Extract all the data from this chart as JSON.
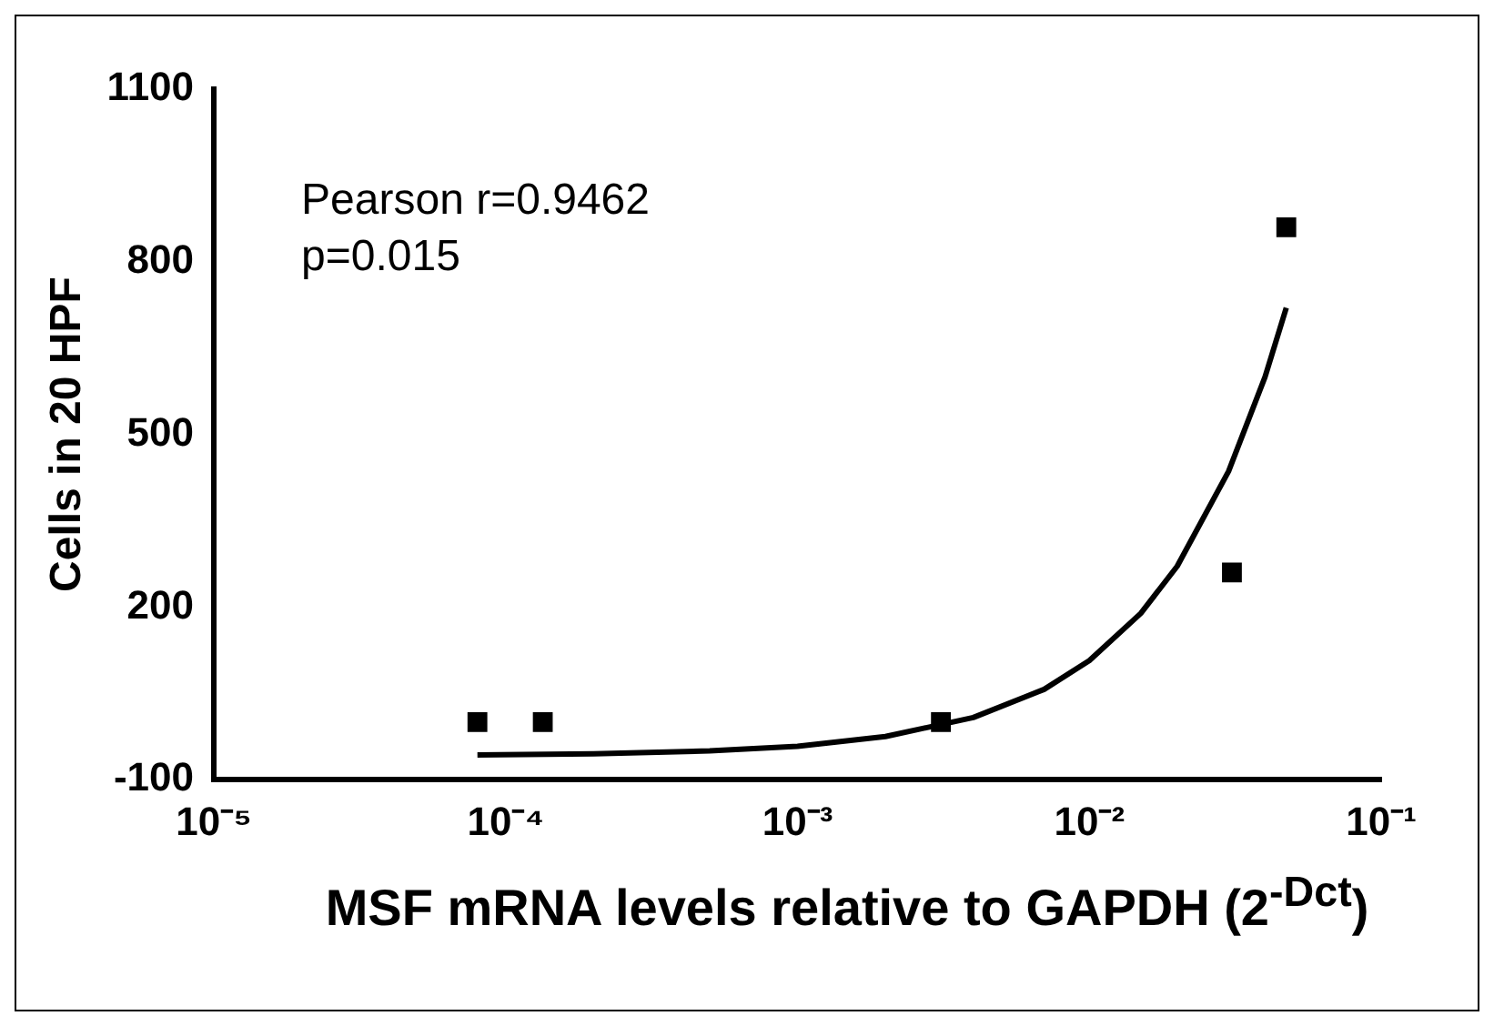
{
  "chart_data": {
    "type": "scatter",
    "xlabel": "MSF mRNA levels relative to GAPDH (2$^{-Dct}$)",
    "ylabel": "Cells in 20 HPF",
    "log": "x",
    "xlim": [
      1e-05,
      0.1
    ],
    "xticks": [
      {
        "value": 1e-05,
        "label": "10⁻⁵"
      },
      {
        "value": 0.0001,
        "label": "10⁻⁴"
      },
      {
        "value": 0.001,
        "label": "10⁻³"
      },
      {
        "value": 0.01,
        "label": "10⁻²"
      },
      {
        "value": 0.1,
        "label": "10⁻¹"
      }
    ],
    "ylim": [
      -100,
      1100
    ],
    "yticks": [
      -100,
      200,
      500,
      800,
      1100
    ],
    "grid": false,
    "legend": false,
    "marker": "square",
    "annotations": [
      "Pearson r=0.9462",
      "p=0.015"
    ],
    "series": [
      {
        "type": "scatter",
        "color": "#000000",
        "x": [
          8e-05,
          0.000134,
          0.0031,
          0.0308,
          0.0473
        ],
        "values": [
          0,
          0,
          0,
          260,
          860
        ]
      },
      {
        "type": "line",
        "color": "#000000",
        "marker": "none",
        "x": [
          8e-05,
          0.0002,
          0.0005,
          0.001,
          0.002,
          0.004,
          0.007,
          0.01,
          0.015,
          0.02,
          0.03,
          0.04,
          0.0473
        ],
        "values": [
          -57,
          -55,
          -50,
          -42,
          -25,
          8,
          57,
          107,
          189,
          271,
          436,
          600,
          720
        ]
      }
    ]
  }
}
